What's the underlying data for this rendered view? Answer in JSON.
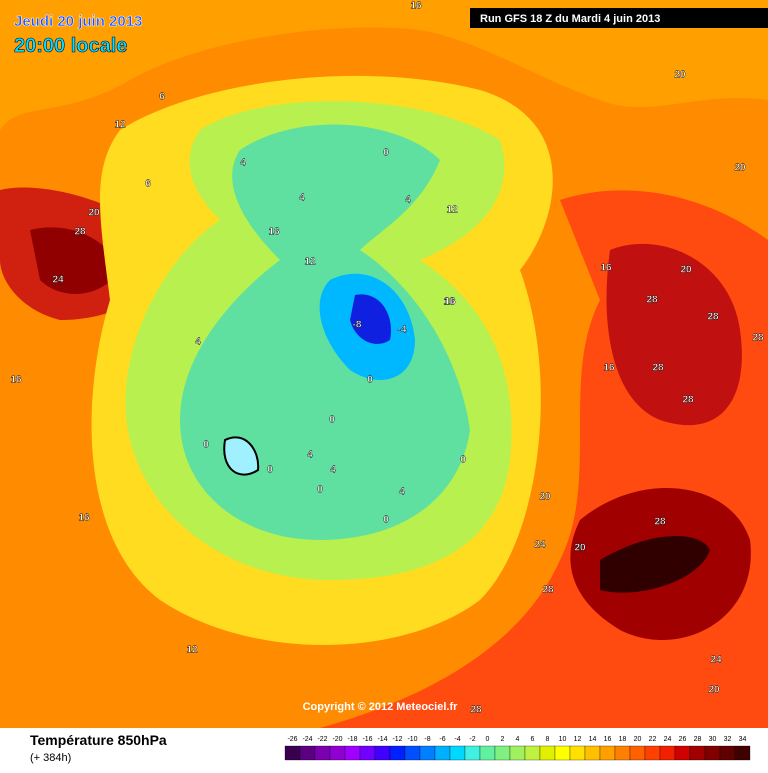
{
  "header": {
    "date": "Jeudi 20 juin 2013",
    "time": "20:00 locale",
    "run": "Run GFS 18 Z du Mardi 4 juin 2013"
  },
  "copyright": "Copyright © 2012 Meteociel.fr",
  "footer": {
    "title": "Température 850hPa",
    "subtitle": "(+ 384h)"
  },
  "contour_labels": [
    16,
    20,
    6,
    12,
    6,
    20,
    28,
    24,
    16,
    12,
    0,
    4,
    4,
    4,
    16,
    12,
    16,
    16,
    20,
    28,
    28,
    28,
    28,
    20,
    20,
    -8,
    -4,
    0,
    4,
    0,
    0,
    0,
    4,
    4,
    0,
    0,
    4,
    0,
    20,
    24,
    20,
    28,
    28,
    16,
    12,
    16,
    28,
    24,
    20,
    28,
    16
  ],
  "legend": {
    "labels": [
      -26,
      -24,
      -22,
      -20,
      -18,
      -16,
      -14,
      -12,
      -10,
      -8,
      -6,
      -4,
      -2,
      0,
      2,
      4,
      6,
      8,
      10,
      12,
      14,
      16,
      18,
      20,
      22,
      24,
      26,
      28,
      30,
      32,
      34
    ],
    "colors": [
      "#3a0050",
      "#5a0080",
      "#7a00b0",
      "#9000d0",
      "#a000ff",
      "#7000ff",
      "#4000ff",
      "#0020ff",
      "#0050ff",
      "#0080ff",
      "#00b0ff",
      "#00d8ff",
      "#40f0e0",
      "#60f0a0",
      "#80f080",
      "#a0f060",
      "#c0f040",
      "#e0f000",
      "#ffff00",
      "#ffe000",
      "#ffc000",
      "#ffa000",
      "#ff8000",
      "#ff6000",
      "#ff4000",
      "#f02000",
      "#d00000",
      "#a00000",
      "#800000",
      "#600000",
      "#400000"
    ]
  }
}
